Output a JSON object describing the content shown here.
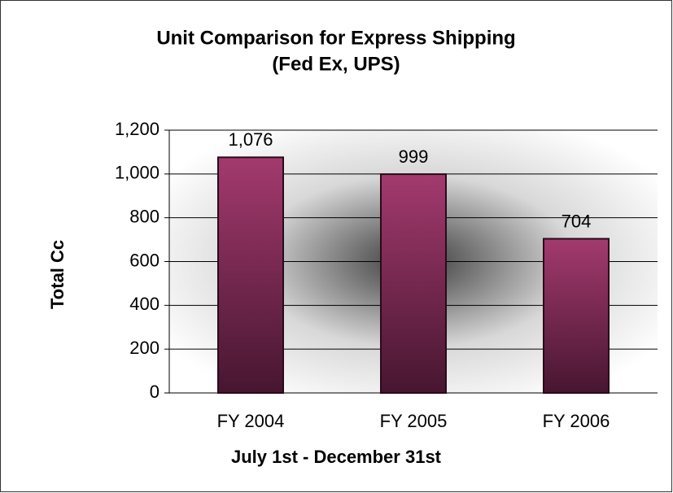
{
  "chart_data": {
    "type": "bar",
    "title": [
      "Unit Comparison for Express Shipping",
      "(Fed Ex, UPS)"
    ],
    "x_label": "July 1st - December 31st",
    "y_label": "Total Cc",
    "categories": [
      "FY 2004",
      "FY 2005",
      "FY 2006"
    ],
    "values": [
      1076,
      999,
      704
    ],
    "value_labels": [
      "1,076",
      "999",
      "704"
    ],
    "color": "#8e2f5e",
    "ylim": [
      0,
      1200
    ],
    "yticks": [
      0,
      200,
      400,
      600,
      800,
      {
        "value": 1000,
        "label": "1,000"
      },
      {
        "value": 1200,
        "label": "1,200"
      }
    ],
    "grid": true
  }
}
